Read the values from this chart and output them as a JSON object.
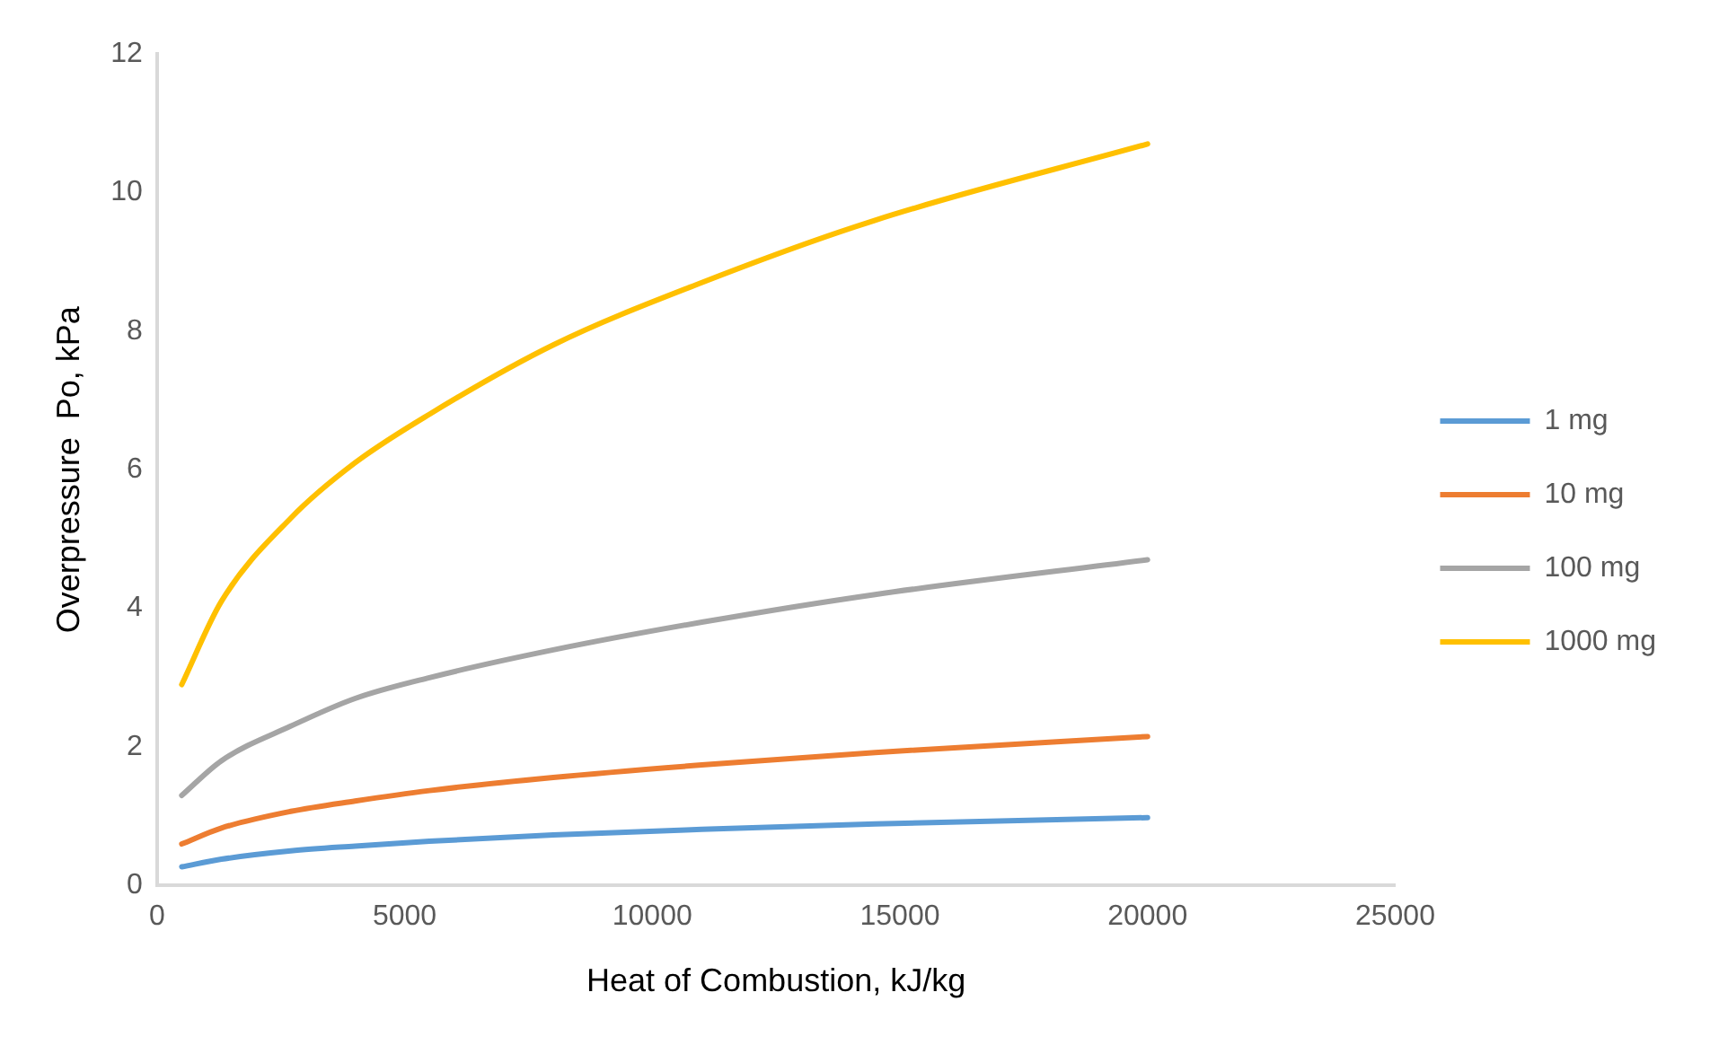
{
  "chart_data": {
    "type": "line",
    "xlabel": "Heat of Combustion, kJ/kg",
    "ylabel": "Overpressure  Po, kPa",
    "x": [
      500,
      1300,
      2700,
      4000,
      5500,
      8000,
      11000,
      14500,
      20000
    ],
    "xlim": [
      0,
      25000
    ],
    "xticks": [
      0,
      5000,
      10000,
      15000,
      20000,
      25000
    ],
    "ylim": [
      0,
      12
    ],
    "yticks": [
      0,
      2,
      4,
      6,
      8,
      10,
      12
    ],
    "grid": false,
    "legend": "right",
    "marker": "none",
    "line_style": "solid",
    "series": [
      {
        "name": "1 mg",
        "color": "#5b9bd5",
        "values": [
          0.27,
          0.38,
          0.5,
          0.57,
          0.64,
          0.73,
          0.81,
          0.89,
          0.98
        ]
      },
      {
        "name": "10 mg",
        "color": "#ed7d31",
        "values": [
          0.6,
          0.83,
          1.07,
          1.22,
          1.37,
          1.56,
          1.74,
          1.92,
          2.15
        ]
      },
      {
        "name": "100 mg",
        "color": "#a5a5a5",
        "values": [
          1.3,
          1.8,
          2.3,
          2.7,
          3.0,
          3.4,
          3.8,
          4.2,
          4.7
        ]
      },
      {
        "name": "1000 mg",
        "color": "#ffc000",
        "values": [
          2.9,
          4.1,
          5.3,
          6.1,
          6.8,
          7.8,
          8.7,
          9.6,
          10.7
        ]
      }
    ]
  }
}
